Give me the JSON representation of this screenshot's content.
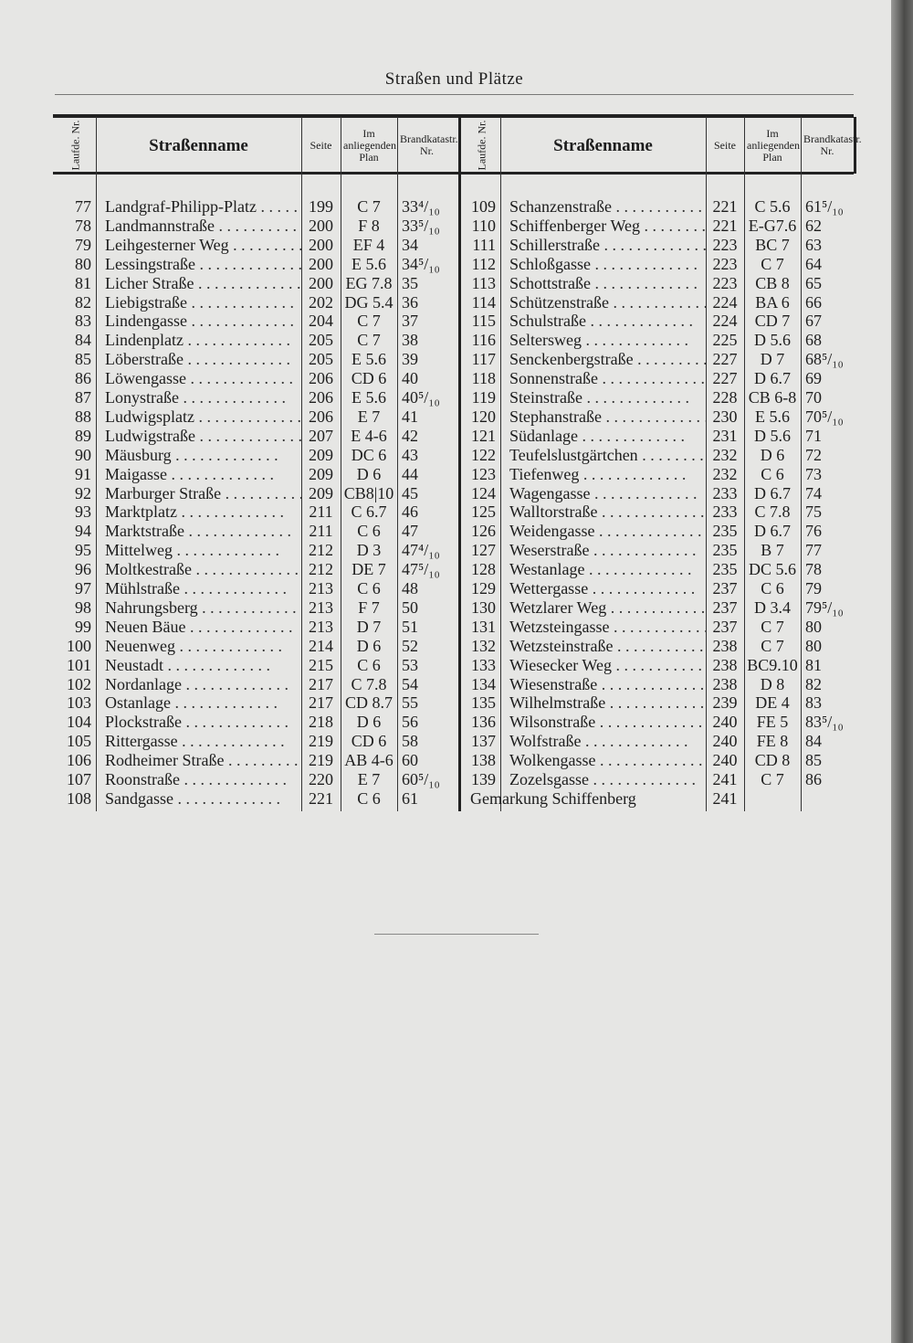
{
  "page_title": "Straßen und Plätze",
  "headers": {
    "nr": "Laufde. Nr.",
    "name": "Straßenname",
    "seite": "Seite",
    "plan": "Im anliegenden Plan",
    "brand": "Brandkatastr. Nr."
  },
  "left_rows": [
    [
      "77",
      "Landgraf-Philipp-Platz",
      "199",
      "C 7",
      "33⁴/₁₀"
    ],
    [
      "78",
      "Landmannstraße",
      "200",
      "F 8",
      "33⁵/₁₀"
    ],
    [
      "79",
      "Leihgesterner Weg",
      "200",
      "EF 4",
      "34"
    ],
    [
      "80",
      "Lessingstraße",
      "200",
      "E 5.6",
      "34⁵/₁₀"
    ],
    [
      "81",
      "Licher Straße",
      "200",
      "EG 7.8",
      "35"
    ],
    [
      "82",
      "Liebigstraße",
      "202",
      "DG 5.4",
      "36"
    ],
    [
      "83",
      "Lindengasse",
      "204",
      "C 7",
      "37"
    ],
    [
      "84",
      "Lindenplatz",
      "205",
      "C 7",
      "38"
    ],
    [
      "85",
      "Löberstraße",
      "205",
      "E 5.6",
      "39"
    ],
    [
      "86",
      "Löwengasse",
      "206",
      "CD 6",
      "40"
    ],
    [
      "87",
      "Lonystraße",
      "206",
      "E 5.6",
      "40⁵/₁₀"
    ],
    [
      "88",
      "Ludwigsplatz",
      "206",
      "E 7",
      "41"
    ],
    [
      "89",
      "Ludwigstraße",
      "207",
      "E 4-6",
      "42"
    ],
    [
      "90",
      "Mäusburg",
      "209",
      "DC 6",
      "43"
    ],
    [
      "91",
      "Maigasse",
      "209",
      "D 6",
      "44"
    ],
    [
      "92",
      "Marburger Straße",
      "209",
      "CB8|10",
      "45"
    ],
    [
      "93",
      "Marktplatz",
      "211",
      "C 6.7",
      "46"
    ],
    [
      "94",
      "Marktstraße",
      "211",
      "C 6",
      "47"
    ],
    [
      "95",
      "Mittelweg",
      "212",
      "D 3",
      "47⁴/₁₀"
    ],
    [
      "96",
      "Moltkestraße",
      "212",
      "DE 7",
      "47⁵/₁₀"
    ],
    [
      "97",
      "Mühlstraße",
      "213",
      "C 6",
      "48"
    ],
    [
      "98",
      "Nahrungsberg",
      "213",
      "F 7",
      "50"
    ],
    [
      "99",
      "Neuen Bäue",
      "213",
      "D 7",
      "51"
    ],
    [
      "100",
      "Neuenweg",
      "214",
      "D 6",
      "52"
    ],
    [
      "101",
      "Neustadt",
      "215",
      "C 6",
      "53"
    ],
    [
      "102",
      "Nordanlage",
      "217",
      "C 7.8",
      "54"
    ],
    [
      "103",
      "Ostanlage",
      "217",
      "CD 8.7",
      "55"
    ],
    [
      "104",
      "Plockstraße",
      "218",
      "D 6",
      "56"
    ],
    [
      "105",
      "Rittergasse",
      "219",
      "CD 6",
      "58"
    ],
    [
      "106",
      "Rodheimer Straße",
      "219",
      "AB 4-6",
      "60"
    ],
    [
      "107",
      "Roonstraße",
      "220",
      "E 7",
      "60⁵/₁₀"
    ],
    [
      "108",
      "Sandgasse",
      "221",
      "C 6",
      "61"
    ]
  ],
  "right_rows": [
    [
      "109",
      "Schanzenstraße",
      "221",
      "C 5.6",
      "61⁵/₁₀"
    ],
    [
      "110",
      "Schiffenberger Weg",
      "221",
      "E-G7.6",
      "62"
    ],
    [
      "111",
      "Schillerstraße",
      "223",
      "BC 7",
      "63"
    ],
    [
      "112",
      "Schloßgasse",
      "223",
      "C 7",
      "64"
    ],
    [
      "113",
      "Schottstraße",
      "223",
      "CB 8",
      "65"
    ],
    [
      "114",
      "Schützenstraße",
      "224",
      "BA 6",
      "66"
    ],
    [
      "115",
      "Schulstraße",
      "224",
      "CD 7",
      "67"
    ],
    [
      "116",
      "Seltersweg",
      "225",
      "D 5.6",
      "68"
    ],
    [
      "117",
      "Senckenbergstraße",
      "227",
      "D 7",
      "68⁵/₁₀"
    ],
    [
      "118",
      "Sonnenstraße",
      "227",
      "D 6.7",
      "69"
    ],
    [
      "119",
      "Steinstraße",
      "228",
      "CB 6-8",
      "70"
    ],
    [
      "120",
      "Stephanstraße",
      "230",
      "E 5.6",
      "70⁵/₁₀"
    ],
    [
      "121",
      "Südanlage",
      "231",
      "D 5.6",
      "71"
    ],
    [
      "122",
      "Teufelslustgärtchen",
      "232",
      "D 6",
      "72"
    ],
    [
      "123",
      "Tiefenweg",
      "232",
      "C 6",
      "73"
    ],
    [
      "124",
      "Wagengasse",
      "233",
      "D 6.7",
      "74"
    ],
    [
      "125",
      "Walltorstraße",
      "233",
      "C 7.8",
      "75"
    ],
    [
      "126",
      "Weidengasse",
      "235",
      "D 6.7",
      "76"
    ],
    [
      "127",
      "Weserstraße",
      "235",
      "B 7",
      "77"
    ],
    [
      "128",
      "Westanlage",
      "235",
      "DC 5.6",
      "78"
    ],
    [
      "129",
      "Wettergasse",
      "237",
      "C 6",
      "79"
    ],
    [
      "130",
      "Wetzlarer Weg",
      "237",
      "D 3.4",
      "79⁵/₁₀"
    ],
    [
      "131",
      "Wetzsteingasse",
      "237",
      "C 7",
      "80"
    ],
    [
      "132",
      "Wetzsteinstraße",
      "238",
      "C 7",
      "80"
    ],
    [
      "133",
      "Wiesecker Weg",
      "238",
      "BC9.10",
      "81"
    ],
    [
      "134",
      "Wiesenstraße",
      "238",
      "D 8",
      "82"
    ],
    [
      "135",
      "Wilhelmstraße",
      "239",
      "DE 4",
      "83"
    ],
    [
      "136",
      "Wilsonstraße",
      "240",
      "FE 5",
      "83⁵/₁₀"
    ],
    [
      "137",
      "Wolfstraße",
      "240",
      "FE 8",
      "84"
    ],
    [
      "138",
      "Wolkengasse",
      "240",
      "CD 8",
      "85"
    ],
    [
      "139",
      "Zozelsgasse",
      "241",
      "C 7",
      "86"
    ],
    [
      "",
      "Gemarkung Schiffenberg",
      "241",
      "",
      ""
    ]
  ]
}
